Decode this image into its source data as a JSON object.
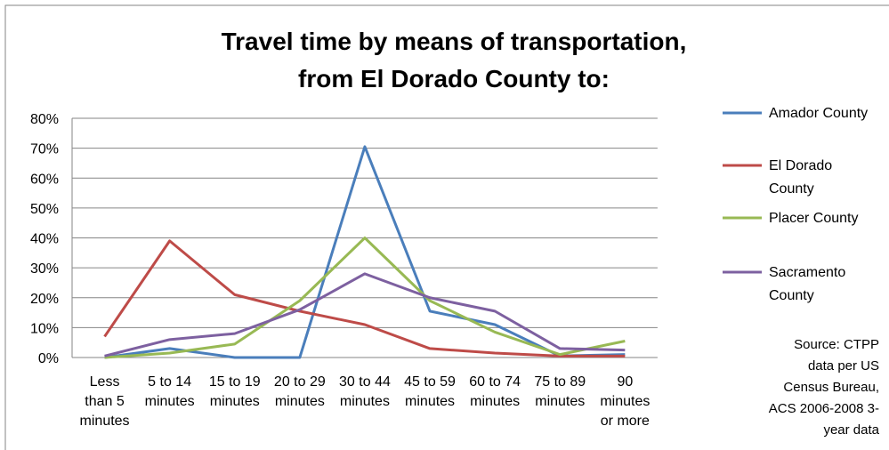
{
  "chart_data": {
    "type": "line",
    "title": [
      "Travel time by means of transportation,",
      "from El Dorado County to:"
    ],
    "categories": [
      "Less than 5 minutes",
      "5 to 14 minutes",
      "15 to 19 minutes",
      "20 to 29 minutes",
      "30 to 44 minutes",
      "45 to 59 minutes",
      "60 to 74 minutes",
      "75 to 89 minutes",
      "90 minutes or more"
    ],
    "series": [
      {
        "name": "Amador County",
        "color": "#4a7ebb",
        "values": [
          0,
          3,
          0,
          0,
          70.5,
          15.5,
          11,
          0.5,
          1
        ]
      },
      {
        "name": "El Dorado County",
        "color": "#be4b48",
        "values": [
          7,
          39,
          21,
          15.5,
          11,
          3,
          1.5,
          0.5,
          0.5
        ]
      },
      {
        "name": "Placer County",
        "color": "#98b954",
        "values": [
          0,
          1.5,
          4.5,
          19,
          40,
          19,
          8.5,
          1,
          5.5
        ]
      },
      {
        "name": "Sacramento County",
        "color": "#7d60a0",
        "values": [
          0.5,
          6,
          8,
          16,
          28,
          20,
          15.5,
          3,
          2.5
        ]
      }
    ],
    "ylim": [
      0,
      80
    ],
    "yticks": [
      {
        "value": 0,
        "label": "0%"
      },
      {
        "value": 10,
        "label": "10%"
      },
      {
        "value": 20,
        "label": "20%"
      },
      {
        "value": 30,
        "label": "30%"
      },
      {
        "value": 40,
        "label": "40%"
      },
      {
        "value": 50,
        "label": "50%"
      },
      {
        "value": 60,
        "label": "60%"
      },
      {
        "value": 70,
        "label": "70%"
      },
      {
        "value": 80,
        "label": "80%"
      }
    ],
    "grid": true,
    "legend": "right",
    "source": [
      "Source:  CTPP",
      "data per US",
      "Census Bureau,",
      "ACS 2006-2008 3-",
      "year data"
    ]
  }
}
